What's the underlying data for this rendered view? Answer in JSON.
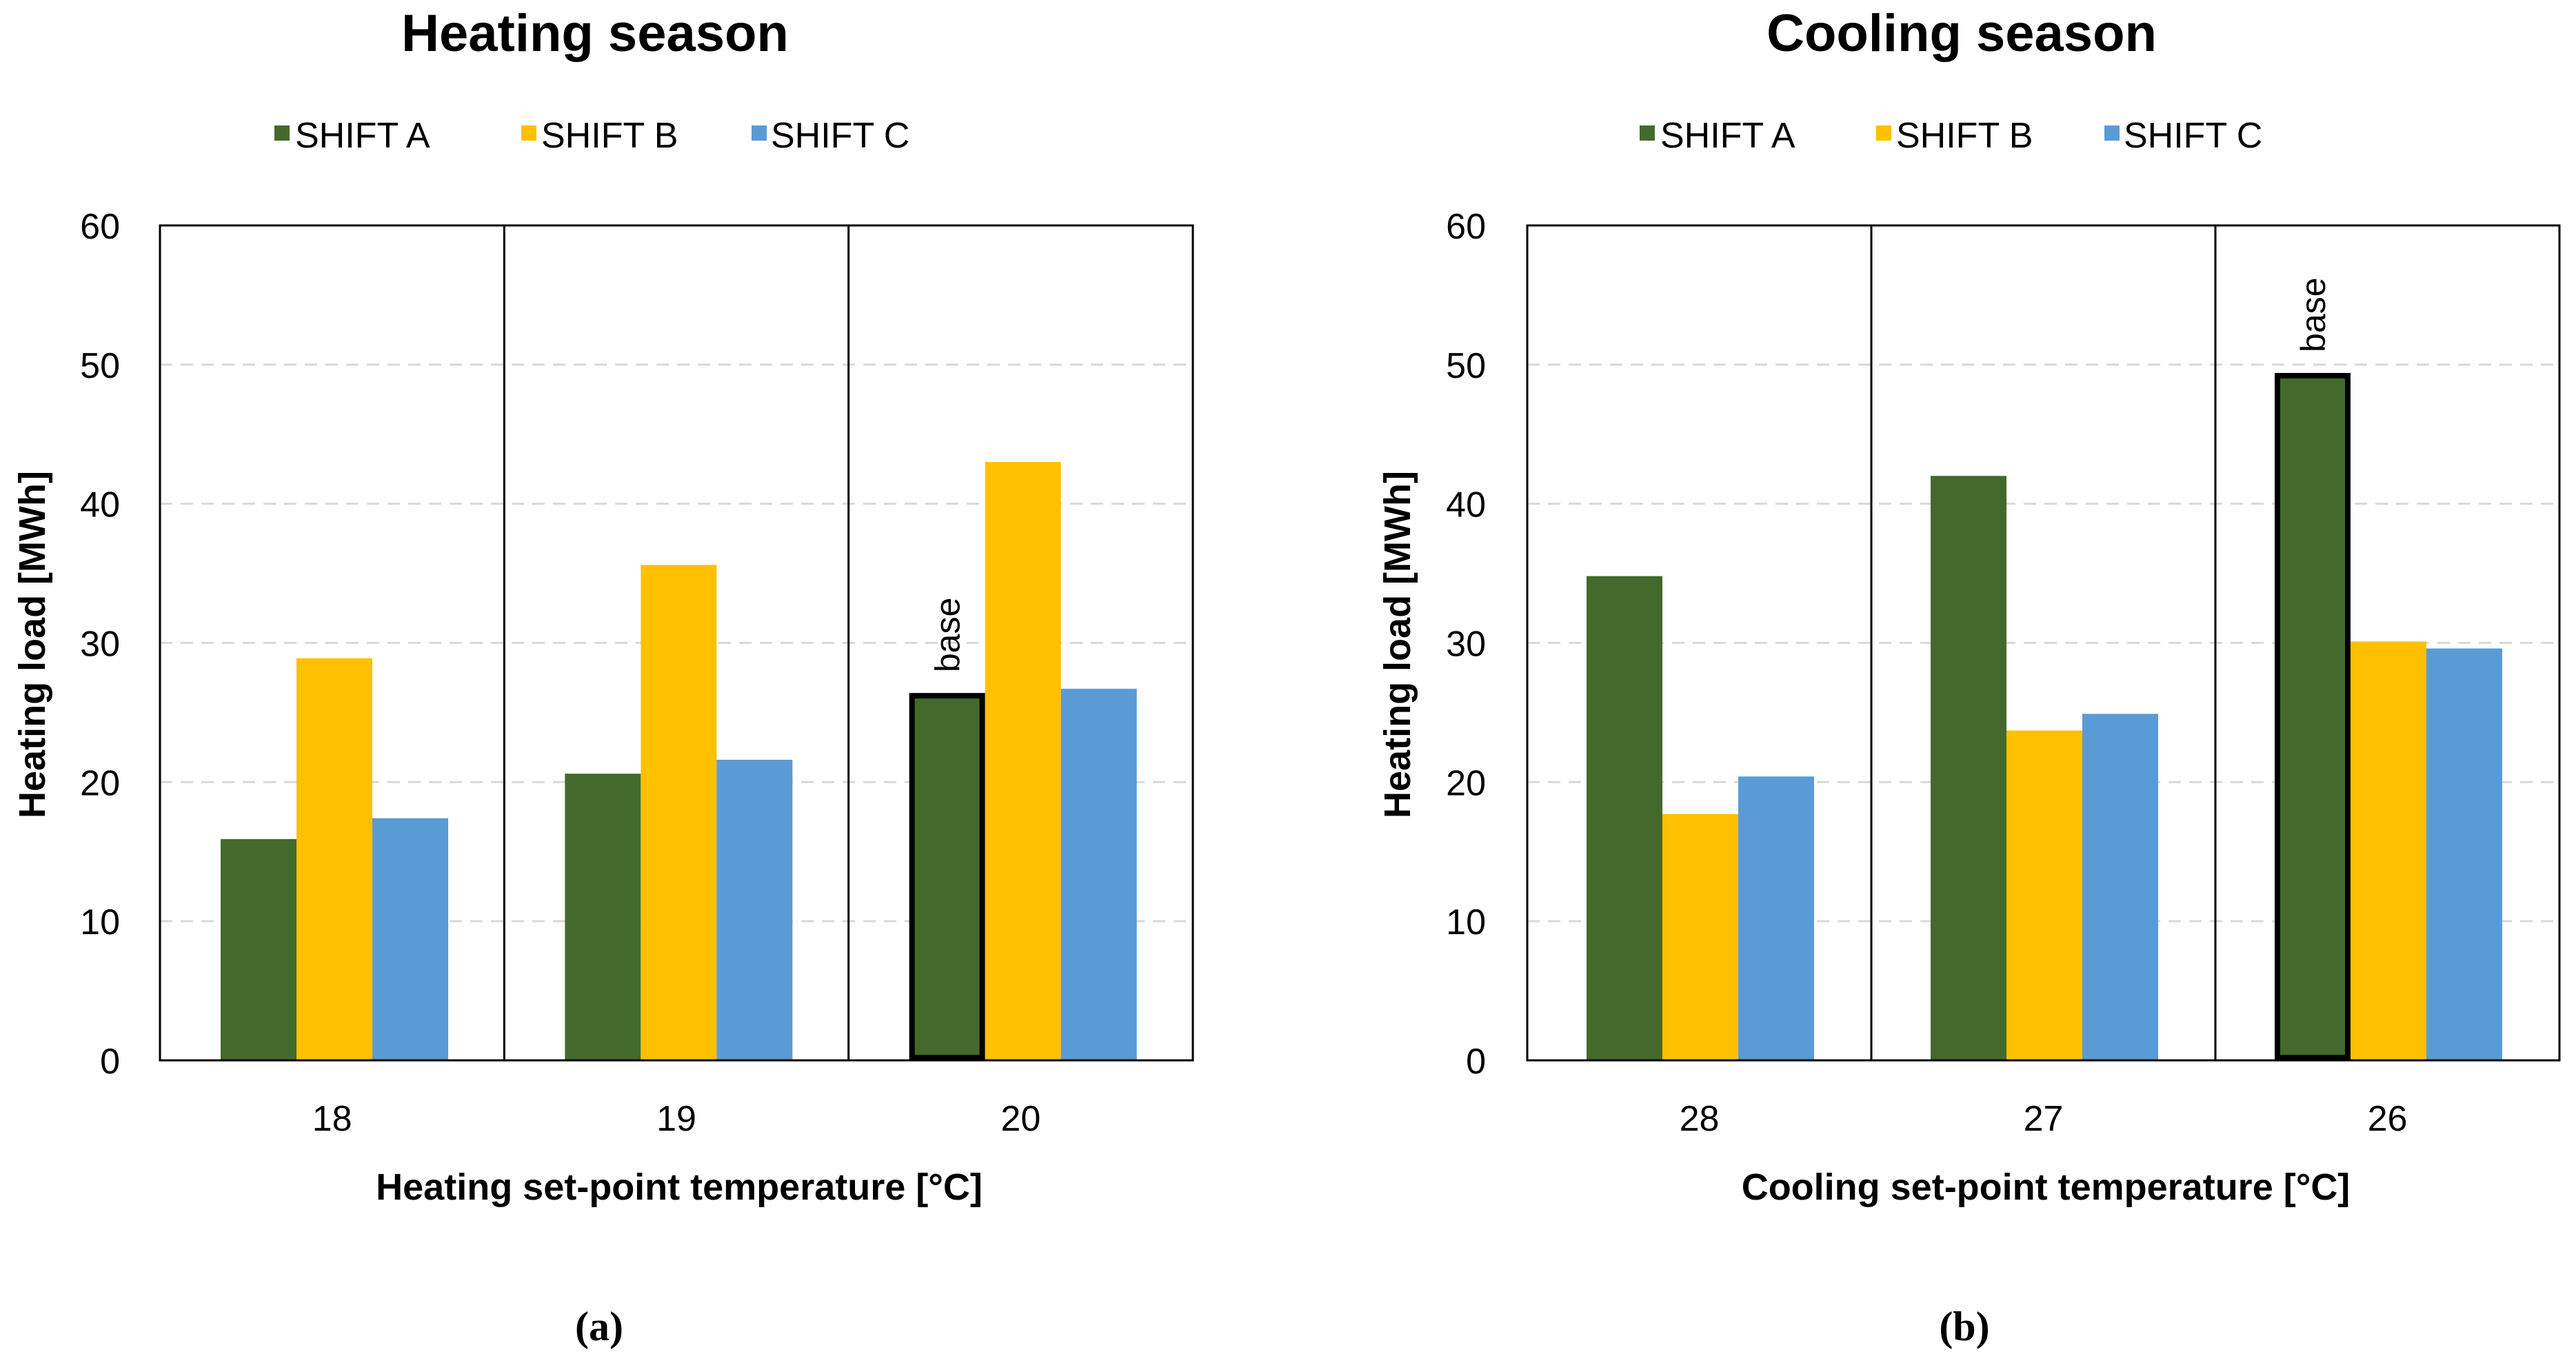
{
  "chart_data": [
    {
      "type": "bar",
      "title": "Heating season",
      "xlabel": "Heating set-point temperature [°C]",
      "ylabel": "Heating load [MWh]",
      "ylim": [
        0,
        60
      ],
      "yticks": [
        "0",
        "10",
        "20",
        "30",
        "40",
        "50",
        "60"
      ],
      "categories": [
        "18",
        "19",
        "20"
      ],
      "series": [
        {
          "name": "SHIFT A",
          "color": "#436A2C",
          "values": [
            15.9,
            20.6,
            26.4
          ]
        },
        {
          "name": "SHIFT B",
          "color": "#FFC000",
          "values": [
            28.9,
            35.6,
            43.0
          ]
        },
        {
          "name": "SHIFT C",
          "color": "#5B9BD5",
          "values": [
            17.4,
            21.6,
            26.7
          ]
        }
      ],
      "annotation": {
        "text": "base",
        "category_index": 2,
        "series_index": 0
      },
      "grid": "horizontal dashed",
      "legend": "top",
      "caption": "(a)"
    },
    {
      "type": "bar",
      "title": "Cooling season",
      "xlabel": "Cooling set-point temperature [°C]",
      "ylabel": "Heating load [MWh]",
      "ylim": [
        0,
        60
      ],
      "yticks": [
        "0",
        "10",
        "20",
        "30",
        "40",
        "50",
        "60"
      ],
      "categories": [
        "28",
        "27",
        "26"
      ],
      "series": [
        {
          "name": "SHIFT A",
          "color": "#436A2C",
          "values": [
            34.8,
            42.0,
            49.4
          ]
        },
        {
          "name": "SHIFT B",
          "color": "#FFC000",
          "values": [
            17.7,
            23.7,
            30.1
          ]
        },
        {
          "name": "SHIFT C",
          "color": "#5B9BD5",
          "values": [
            20.4,
            24.9,
            29.6
          ]
        }
      ],
      "annotation": {
        "text": "base",
        "category_index": 2,
        "series_index": 0
      },
      "grid": "horizontal dashed",
      "legend": "top",
      "caption": "(b)"
    }
  ]
}
